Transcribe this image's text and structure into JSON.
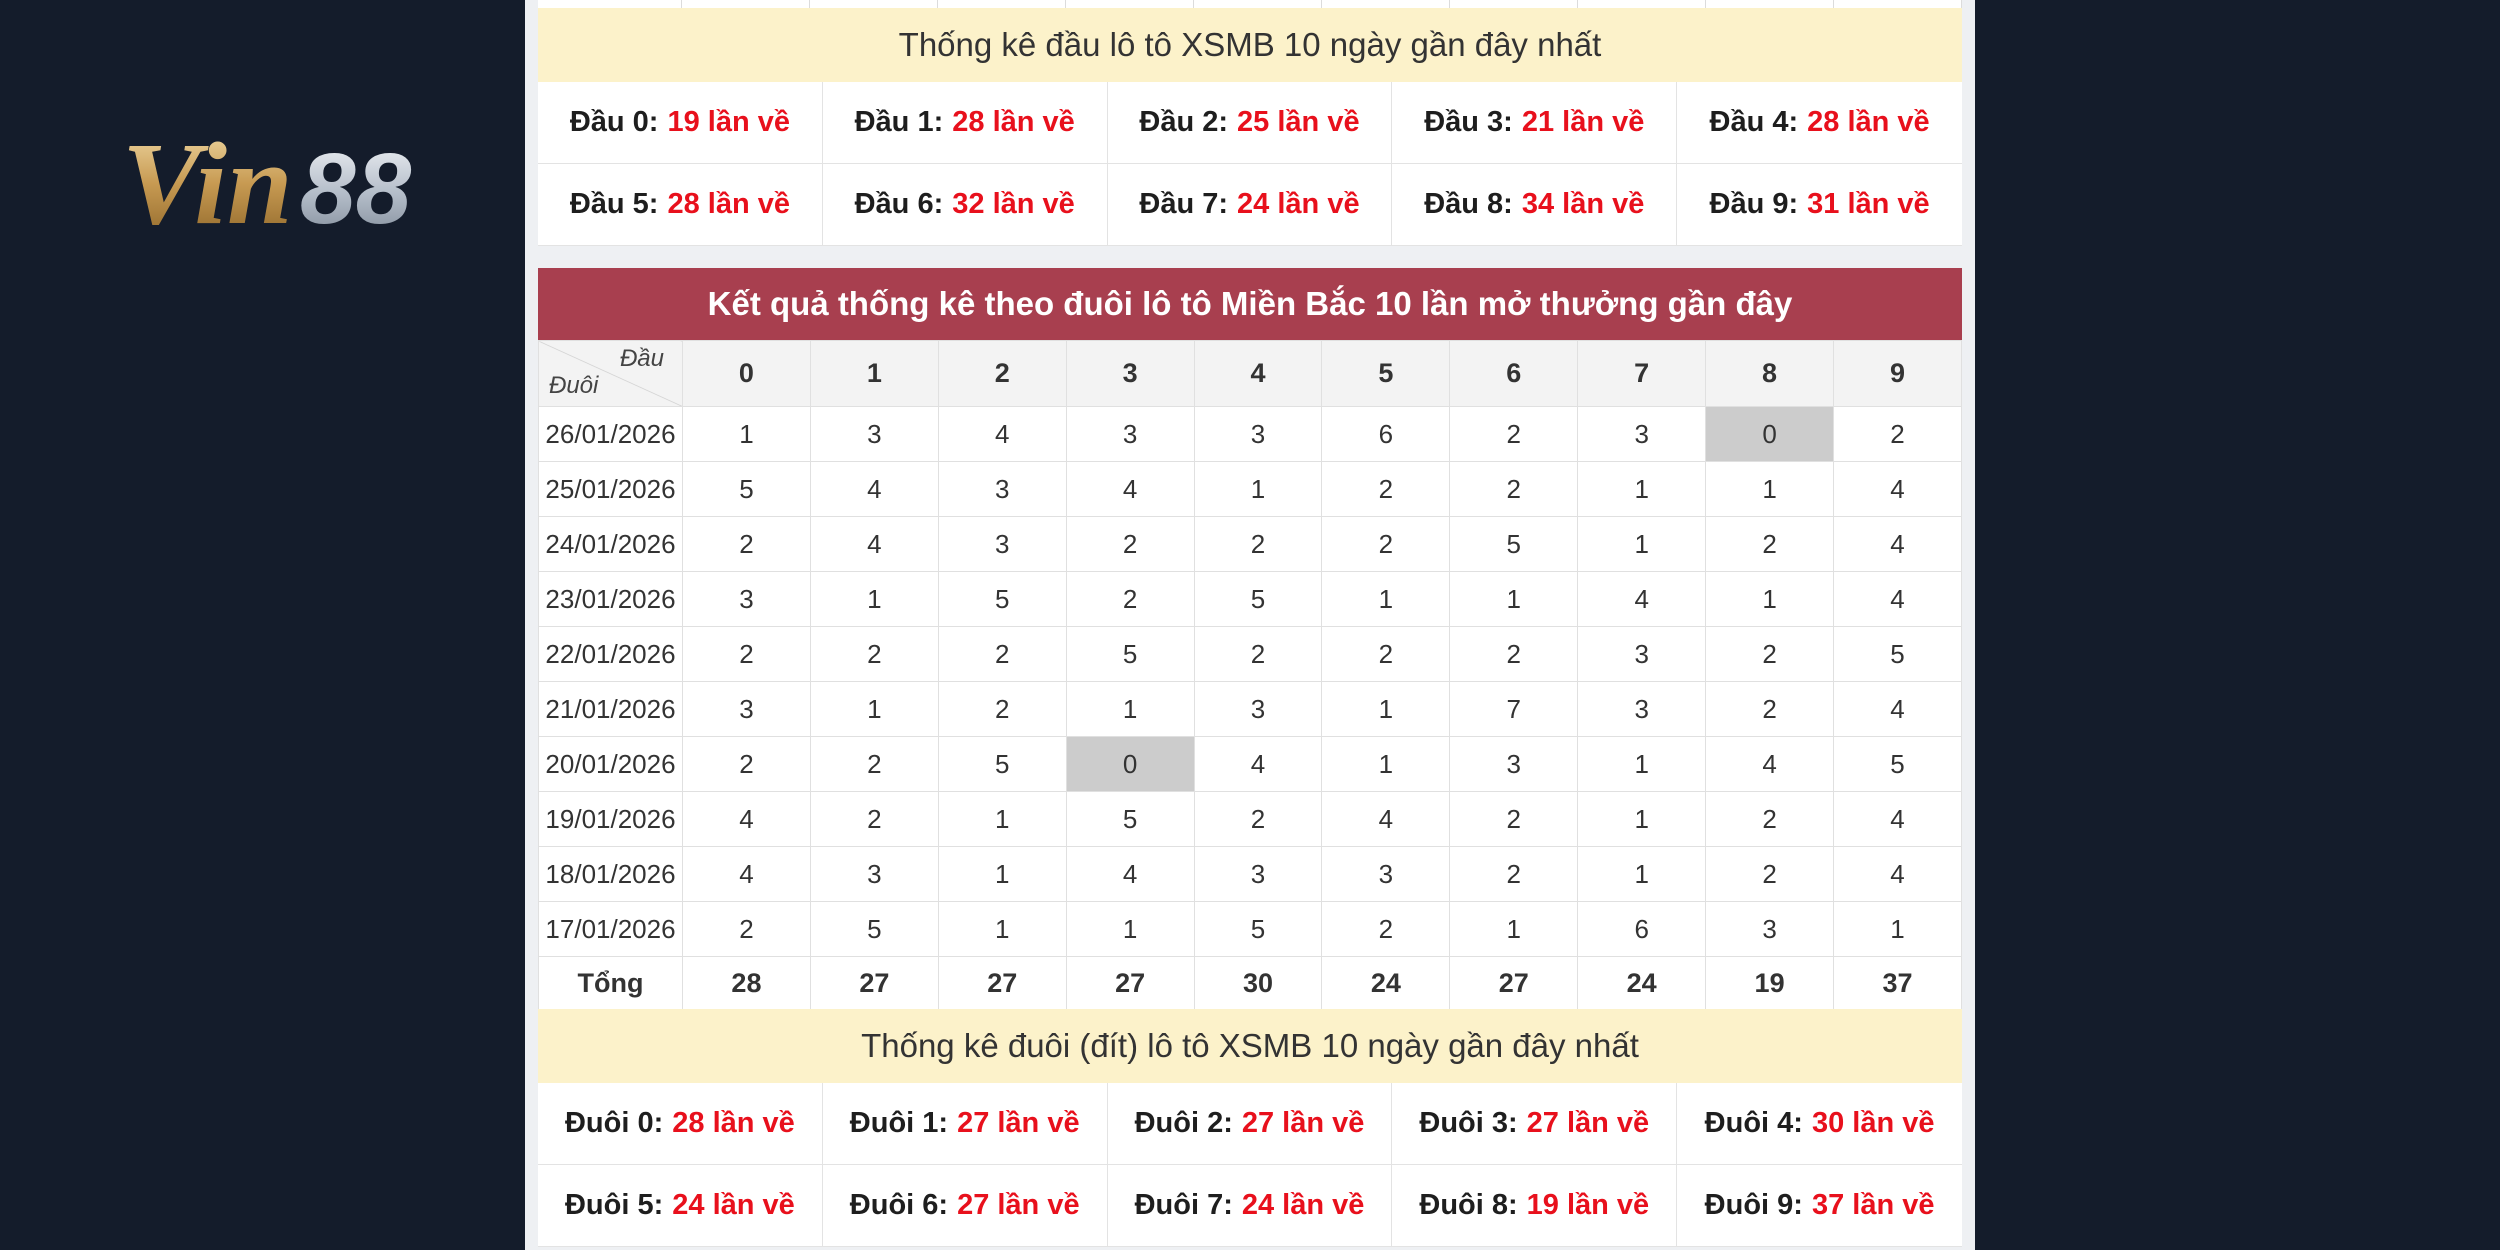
{
  "logo": {
    "text": "Vin88",
    "part1": "Vin",
    "part2": "88"
  },
  "head_summary": {
    "title": "Thống kê đầu lô tô XSMB 10 ngày gần đây nhất",
    "items": [
      {
        "label": "Đầu 0:",
        "value": "19 lần về"
      },
      {
        "label": "Đầu 1:",
        "value": "28 lần về"
      },
      {
        "label": "Đầu 2:",
        "value": "25 lần về"
      },
      {
        "label": "Đầu 3:",
        "value": "21 lần về"
      },
      {
        "label": "Đầu 4:",
        "value": "28 lần về"
      },
      {
        "label": "Đầu 5:",
        "value": "28 lần về"
      },
      {
        "label": "Đầu 6:",
        "value": "32 lần về"
      },
      {
        "label": "Đầu 7:",
        "value": "24 lần về"
      },
      {
        "label": "Đầu 8:",
        "value": "34 lần về"
      },
      {
        "label": "Đầu 9:",
        "value": "31 lần về"
      }
    ]
  },
  "stats_table": {
    "title": "Kết quả thống kê theo đuôi lô tô Miền Bắc 10 lần mở thưởng gần đây",
    "corner_top": "Đầu",
    "corner_bottom": "Đuôi",
    "columns": [
      "0",
      "1",
      "2",
      "3",
      "4",
      "5",
      "6",
      "7",
      "8",
      "9"
    ],
    "rows": [
      {
        "date": "26/01/2026",
        "values": [
          "1",
          "3",
          "4",
          "3",
          "3",
          "6",
          "2",
          "3",
          "0",
          "2"
        ],
        "highlight": [
          8
        ]
      },
      {
        "date": "25/01/2026",
        "values": [
          "5",
          "4",
          "3",
          "4",
          "1",
          "2",
          "2",
          "1",
          "1",
          "4"
        ],
        "highlight": []
      },
      {
        "date": "24/01/2026",
        "values": [
          "2",
          "4",
          "3",
          "2",
          "2",
          "2",
          "5",
          "1",
          "2",
          "4"
        ],
        "highlight": []
      },
      {
        "date": "23/01/2026",
        "values": [
          "3",
          "1",
          "5",
          "2",
          "5",
          "1",
          "1",
          "4",
          "1",
          "4"
        ],
        "highlight": []
      },
      {
        "date": "22/01/2026",
        "values": [
          "2",
          "2",
          "2",
          "5",
          "2",
          "2",
          "2",
          "3",
          "2",
          "5"
        ],
        "highlight": []
      },
      {
        "date": "21/01/2026",
        "values": [
          "3",
          "1",
          "2",
          "1",
          "3",
          "1",
          "7",
          "3",
          "2",
          "4"
        ],
        "highlight": []
      },
      {
        "date": "20/01/2026",
        "values": [
          "2",
          "2",
          "5",
          "0",
          "4",
          "1",
          "3",
          "1",
          "4",
          "5"
        ],
        "highlight": [
          3
        ]
      },
      {
        "date": "19/01/2026",
        "values": [
          "4",
          "2",
          "1",
          "5",
          "2",
          "4",
          "2",
          "1",
          "2",
          "4"
        ],
        "highlight": []
      },
      {
        "date": "18/01/2026",
        "values": [
          "4",
          "3",
          "1",
          "4",
          "3",
          "3",
          "2",
          "1",
          "2",
          "4"
        ],
        "highlight": []
      },
      {
        "date": "17/01/2026",
        "values": [
          "2",
          "5",
          "1",
          "1",
          "5",
          "2",
          "1",
          "6",
          "3",
          "1"
        ],
        "highlight": []
      }
    ],
    "total_label": "Tổng",
    "totals": [
      "28",
      "27",
      "27",
      "27",
      "30",
      "24",
      "27",
      "24",
      "19",
      "37"
    ]
  },
  "tail_summary": {
    "title": "Thống kê đuôi (đít) lô tô XSMB 10 ngày gần đây nhất",
    "items": [
      {
        "label": "Đuôi 0:",
        "value": "28 lần về"
      },
      {
        "label": "Đuôi 1:",
        "value": "27 lần về"
      },
      {
        "label": "Đuôi 2:",
        "value": "27 lần về"
      },
      {
        "label": "Đuôi 3:",
        "value": "27 lần về"
      },
      {
        "label": "Đuôi 4:",
        "value": "30 lần về"
      },
      {
        "label": "Đuôi 5:",
        "value": "24 lần về"
      },
      {
        "label": "Đuôi 6:",
        "value": "27 lần về"
      },
      {
        "label": "Đuôi 7:",
        "value": "24 lần về"
      },
      {
        "label": "Đuôi 8:",
        "value": "19 lần về"
      },
      {
        "label": "Đuôi 9:",
        "value": "37 lần về"
      }
    ]
  }
}
